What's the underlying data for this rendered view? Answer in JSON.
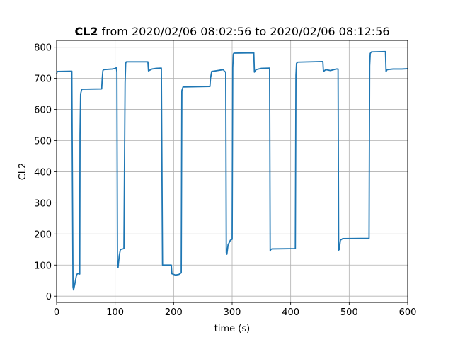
{
  "chart_data": {
    "type": "line",
    "title_bold": "CL2",
    "title_rest": " from 2020/02/06 08:02:56 to 2020/02/06 08:12:56",
    "xlabel": "time (s)",
    "ylabel": "CL2",
    "xlim": [
      0,
      600
    ],
    "ylim": [
      -20,
      822
    ],
    "xticks": [
      0,
      100,
      200,
      300,
      400,
      500,
      600
    ],
    "yticks": [
      0,
      100,
      200,
      300,
      400,
      500,
      600,
      700,
      800
    ],
    "grid": true,
    "legend": "none",
    "series": [
      {
        "color": "#1f77b4",
        "points": [
          [
            0,
            715
          ],
          [
            1,
            722
          ],
          [
            26,
            723
          ],
          [
            28,
            30
          ],
          [
            29,
            20
          ],
          [
            31,
            38
          ],
          [
            34,
            68
          ],
          [
            36,
            73
          ],
          [
            39,
            71
          ],
          [
            39.5,
            71
          ],
          [
            40,
            520
          ],
          [
            41,
            650
          ],
          [
            43,
            665
          ],
          [
            77,
            666
          ],
          [
            78,
            700
          ],
          [
            79,
            724
          ],
          [
            80,
            728
          ],
          [
            95,
            730
          ],
          [
            101,
            732
          ],
          [
            102,
            735
          ],
          [
            103,
            720
          ],
          [
            104,
            95
          ],
          [
            105,
            92
          ],
          [
            107,
            130
          ],
          [
            109,
            150
          ],
          [
            115,
            153
          ],
          [
            117,
            685
          ],
          [
            118,
            748
          ],
          [
            119,
            753
          ],
          [
            156,
            753
          ],
          [
            157,
            724
          ],
          [
            163,
            730
          ],
          [
            170,
            732
          ],
          [
            179,
            733
          ],
          [
            181,
            100
          ],
          [
            196,
            100
          ],
          [
            197,
            72
          ],
          [
            203,
            68
          ],
          [
            209,
            70
          ],
          [
            213,
            75
          ],
          [
            214,
            660
          ],
          [
            216,
            672
          ],
          [
            262,
            674
          ],
          [
            263,
            700
          ],
          [
            265,
            722
          ],
          [
            275,
            725
          ],
          [
            285,
            728
          ],
          [
            287,
            722
          ],
          [
            289,
            720
          ],
          [
            290,
            140
          ],
          [
            291,
            135
          ],
          [
            293,
            165
          ],
          [
            297,
            180
          ],
          [
            300,
            183
          ],
          [
            301,
            735
          ],
          [
            302,
            778
          ],
          [
            303,
            781
          ],
          [
            337,
            782
          ],
          [
            338,
            720
          ],
          [
            341,
            728
          ],
          [
            350,
            732
          ],
          [
            364,
            733
          ],
          [
            365,
            145
          ],
          [
            366,
            150
          ],
          [
            368,
            152
          ],
          [
            408,
            153
          ],
          [
            409,
            710
          ],
          [
            410,
            748
          ],
          [
            412,
            752
          ],
          [
            455,
            754
          ],
          [
            456,
            722
          ],
          [
            460,
            728
          ],
          [
            468,
            725
          ],
          [
            478,
            730
          ],
          [
            481,
            730
          ],
          [
            482,
            148
          ],
          [
            483,
            150
          ],
          [
            485,
            180
          ],
          [
            489,
            185
          ],
          [
            534,
            186
          ],
          [
            535,
            740
          ],
          [
            536,
            780
          ],
          [
            538,
            785
          ],
          [
            562,
            786
          ],
          [
            563,
            722
          ],
          [
            565,
            728
          ],
          [
            575,
            730
          ],
          [
            590,
            730
          ],
          [
            600,
            731
          ]
        ]
      }
    ]
  }
}
